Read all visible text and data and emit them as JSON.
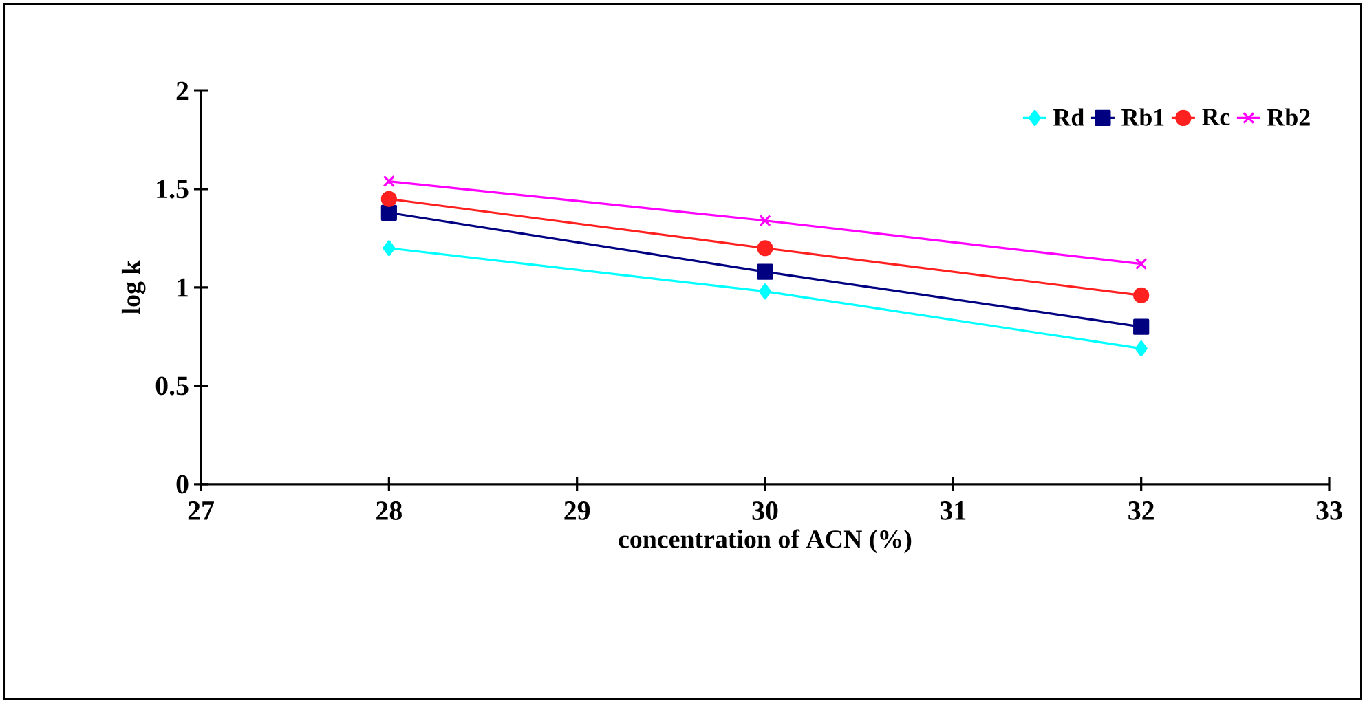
{
  "chart_data": {
    "type": "line",
    "xlabel": "concentration of ACN (%)",
    "ylabel": "log k",
    "x": [
      28,
      30,
      32
    ],
    "xlim": [
      27,
      33
    ],
    "xticks": [
      27,
      28,
      29,
      30,
      31,
      32,
      33
    ],
    "ylim": [
      0,
      2
    ],
    "yticks": [
      0,
      0.5,
      1,
      1.5,
      2
    ],
    "legend": "top right",
    "grid": false,
    "series": [
      {
        "name": "Rd",
        "color": "#00ffff",
        "marker": "diamond",
        "values": [
          1.2,
          0.98,
          0.69
        ]
      },
      {
        "name": "Rb1",
        "color": "#000080",
        "marker": "square",
        "values": [
          1.38,
          1.08,
          0.8
        ]
      },
      {
        "name": "Rc",
        "color": "#ff2020",
        "marker": "circle",
        "values": [
          1.45,
          1.2,
          0.96
        ]
      },
      {
        "name": "Rb2",
        "color": "#ff00ff",
        "marker": "cross",
        "values": [
          1.54,
          1.34,
          1.12
        ]
      }
    ]
  }
}
